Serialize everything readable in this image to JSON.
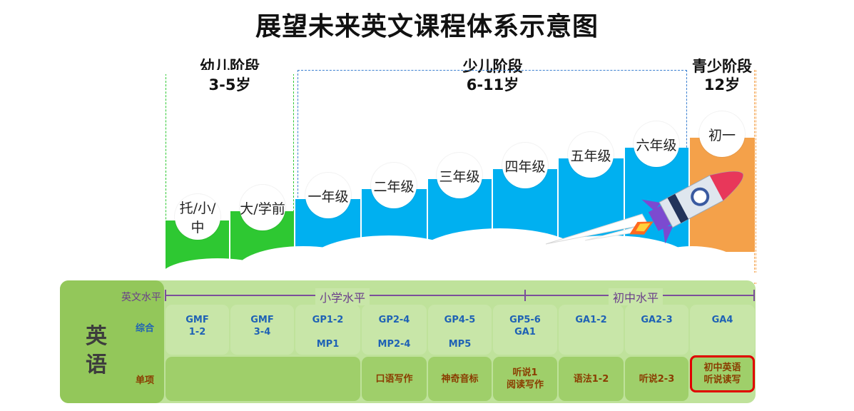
{
  "title": "展望未来英文课程体系示意图",
  "stages": [
    {
      "name": "幼儿阶段",
      "age": "3-5岁"
    },
    {
      "name": "少儿阶段",
      "age": "6-11岁"
    },
    {
      "name": "青少阶段",
      "age": "12岁"
    }
  ],
  "grades": [
    "托/小/中",
    "大/学前",
    "一年级",
    "二年级",
    "三年级",
    "四年级",
    "五年级",
    "六年级",
    "初一"
  ],
  "colors": {
    "green": "#2ec832",
    "blue": "#00b0f0",
    "orange": "#f4a14a",
    "table_light": "#c8e6a8",
    "table_dark": "#9fcf6a",
    "highlight": "#e00000"
  },
  "table": {
    "subject": "英语",
    "row_labels": {
      "level": "英文水平",
      "comprehensive": "综合",
      "single": "单项"
    },
    "levels": {
      "primary": "小学水平",
      "junior": "初中水平"
    },
    "comprehensive": [
      [
        "GMF",
        "1-2"
      ],
      [
        "GMF",
        "3-4"
      ],
      [
        "GP1-2",
        "",
        "MP1"
      ],
      [
        "GP2-4",
        "",
        "MP2-4"
      ],
      [
        "GP4-5",
        "",
        "MP5"
      ],
      [
        "GP5-6",
        "GA1"
      ],
      [
        "GA1-2"
      ],
      [
        "GA2-3"
      ],
      [
        "GA4"
      ]
    ],
    "single": [
      [
        "口语写作"
      ],
      [
        "神奇音标"
      ],
      [
        "听说1",
        "阅读写作"
      ],
      [
        "语法1-2"
      ],
      [
        "听说2-3"
      ],
      [
        "初中英语",
        "听说读写"
      ]
    ]
  }
}
